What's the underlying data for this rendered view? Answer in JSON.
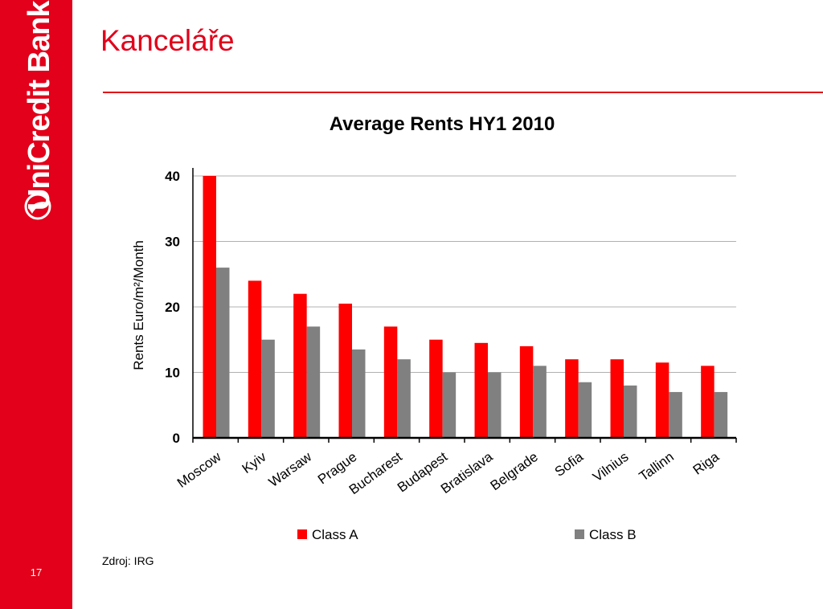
{
  "brand": {
    "name": "UniCredit Bank",
    "color": "#e2001a"
  },
  "slide": {
    "title": "Kanceláře",
    "page_number": "17",
    "source": "Zdroj: IRG"
  },
  "chart_data": {
    "type": "bar",
    "title": "Average Rents HY1 2010",
    "xlabel": "",
    "ylabel": "Rents Euro/m²/Month",
    "ylim": [
      0,
      40
    ],
    "yticks": [
      0,
      10,
      20,
      30,
      40
    ],
    "grid": true,
    "legend_position": "bottom",
    "categories": [
      "Moscow",
      "Kyiv",
      "Warsaw",
      "Prague",
      "Bucharest",
      "Budapest",
      "Bratislava",
      "Belgrade",
      "Sofia",
      "Vilnius",
      "Tallinn",
      "Riga"
    ],
    "series": [
      {
        "name": "Class A",
        "color": "#ff0000",
        "values": [
          40,
          24,
          22,
          20.5,
          17,
          15,
          14.5,
          14,
          12,
          12,
          11.5,
          11
        ]
      },
      {
        "name": "Class B",
        "color": "#808080",
        "values": [
          26,
          15,
          17,
          13.5,
          12,
          10,
          10,
          11,
          8.5,
          8,
          7,
          7
        ]
      }
    ]
  }
}
